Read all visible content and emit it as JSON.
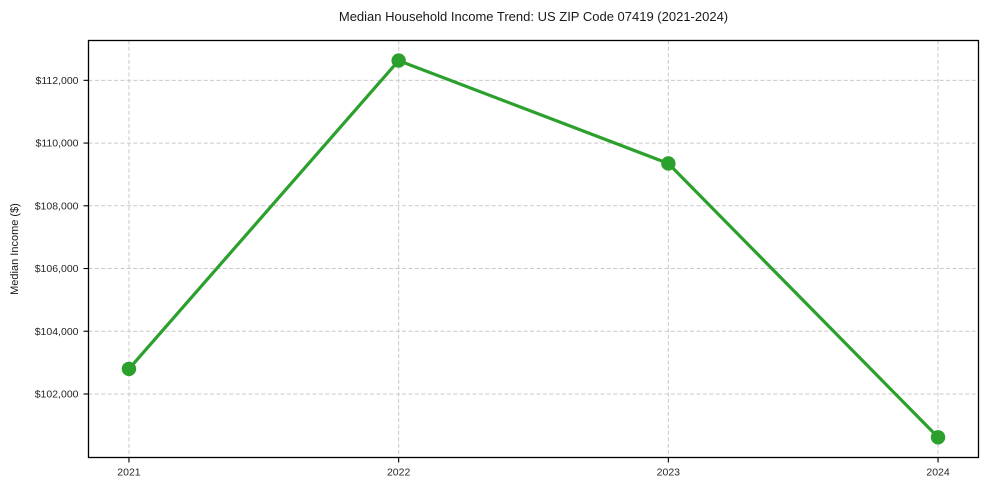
{
  "chart_data": {
    "type": "line",
    "title": "Median Household Income Trend: US ZIP Code 07419 (2021-2024)",
    "xlabel": "",
    "ylabel": "Median Income ($)",
    "x": [
      2021,
      2022,
      2023,
      2024
    ],
    "series": [
      {
        "name": "Median Household Income",
        "values": [
          102800,
          112630,
          109350,
          100620
        ]
      }
    ],
    "xlim": [
      2020.85,
      2024.15
    ],
    "ylim": [
      99975,
      113270
    ],
    "xticks": [
      2021,
      2022,
      2023,
      2024
    ],
    "xtick_labels": [
      "2021",
      "2022",
      "2023",
      "2024"
    ],
    "yticks": [
      102000,
      104000,
      106000,
      108000,
      110000,
      112000
    ],
    "ytick_labels": [
      "$102,000",
      "$104,000",
      "$106,000",
      "$108,000",
      "$110,000",
      "$112,000"
    ],
    "grid": true,
    "grid_style": "dashed",
    "legend": "none",
    "colors": {
      "line": "#2ca02c",
      "marker": "#2ca02c",
      "grid": "#c9c9c9",
      "axis_border": "#000000",
      "tick_label": "#262626",
      "background": "#ffffff"
    }
  }
}
